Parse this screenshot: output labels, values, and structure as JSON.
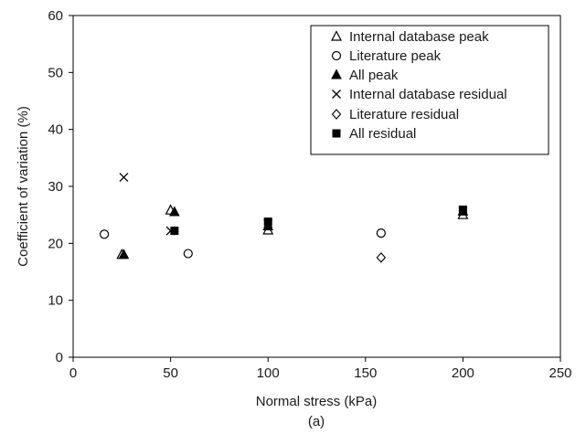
{
  "chart_data": {
    "type": "scatter",
    "caption": "(a)",
    "xlabel": "Normal stress (kPa)",
    "ylabel": "Coefficient of variation (%)",
    "xlim": [
      0,
      250
    ],
    "ylim": [
      0,
      60
    ],
    "xticks": [
      0,
      50,
      100,
      150,
      200,
      250
    ],
    "yticks": [
      0,
      10,
      20,
      30,
      40,
      50,
      60
    ],
    "grid": false,
    "legend_position": "top-right",
    "series": [
      {
        "name": "Internal database peak",
        "marker": "triangle-open",
        "points": [
          [
            25,
            18.0
          ],
          [
            50,
            25.8
          ],
          [
            100,
            22.3
          ],
          [
            200,
            25.0
          ]
        ]
      },
      {
        "name": "Literature peak",
        "marker": "circle-open",
        "points": [
          [
            16,
            21.6
          ],
          [
            59,
            18.2
          ],
          [
            158,
            21.8
          ]
        ]
      },
      {
        "name": "All peak",
        "marker": "triangle-filled",
        "points": [
          [
            26,
            18.0
          ],
          [
            52,
            25.5
          ],
          [
            100,
            23.0
          ],
          [
            200,
            25.6
          ]
        ]
      },
      {
        "name": "Internal database residual",
        "marker": "x",
        "points": [
          [
            26,
            31.6
          ],
          [
            50,
            22.2
          ],
          [
            100,
            23.5
          ],
          [
            200,
            25.8
          ]
        ]
      },
      {
        "name": "Literature residual",
        "marker": "diamond-open",
        "points": [
          [
            158,
            17.5
          ]
        ]
      },
      {
        "name": "All residual",
        "marker": "square-filled",
        "points": [
          [
            52,
            22.2
          ],
          [
            100,
            23.8
          ],
          [
            200,
            25.9
          ]
        ]
      }
    ]
  }
}
